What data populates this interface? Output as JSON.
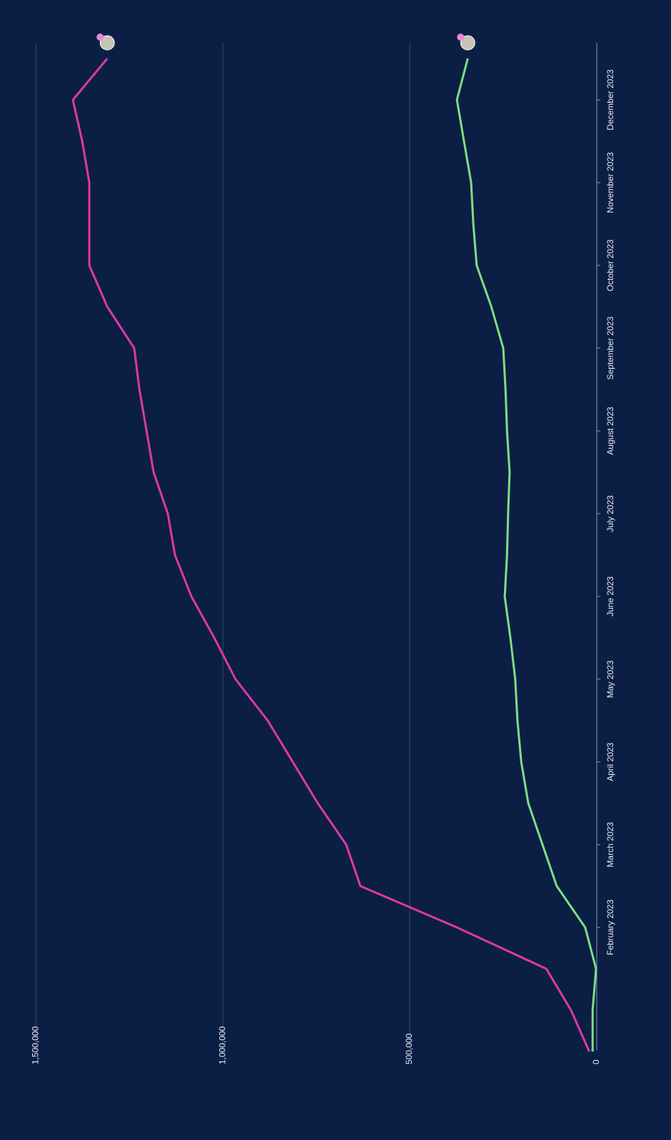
{
  "chart_data": {
    "type": "line",
    "categories": [
      null,
      null,
      null,
      "February 2023",
      null,
      "March 2023",
      null,
      "April 2023",
      null,
      "May 2023",
      null,
      "June 2023",
      null,
      "July 2023",
      null,
      "August 2023",
      null,
      "September 2023",
      null,
      "October 2023",
      null,
      "November 2023",
      null,
      "December 2023",
      null
    ],
    "series": [
      {
        "color": "#e0389f",
        "values": [
          20000,
          69000,
          135000,
          374000,
          632000,
          670000,
          746000,
          813000,
          880000,
          966000,
          1023000,
          1084000,
          1128000,
          1147000,
          1185000,
          1204000,
          1223000,
          1237000,
          1309000,
          1357000,
          1357000,
          1357000,
          1376000,
          1401000,
          1309000
        ]
      },
      {
        "color": "#7de07f",
        "values": [
          11000,
          11000,
          2000,
          31000,
          107000,
          145000,
          183000,
          202000,
          212000,
          218000,
          231000,
          246000,
          240000,
          237000,
          233000,
          240000,
          244000,
          250000,
          282000,
          321000,
          330000,
          336000,
          355000,
          374000,
          345000
        ]
      }
    ],
    "ylim": [
      0,
      1550000
    ],
    "yticks": [
      0,
      {
        "value": 500000,
        "label": "500,000"
      },
      {
        "value": 1000000,
        "label": "1,000,000"
      },
      {
        "value": 1500000,
        "label": "1,500,000"
      }
    ],
    "grid": true
  }
}
